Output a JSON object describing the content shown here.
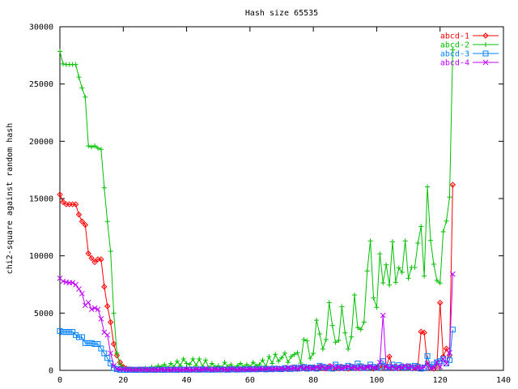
{
  "chart_data": {
    "type": "line",
    "title": "Hash size 65535",
    "xlabel": "",
    "ylabel": "chi2-square against random hash",
    "xlim": [
      0,
      140
    ],
    "ylim": [
      0,
      30000
    ],
    "xticks": [
      0,
      20,
      40,
      60,
      80,
      100,
      120,
      140
    ],
    "yticks": [
      0,
      5000,
      10000,
      15000,
      20000,
      25000,
      30000
    ],
    "grid": false,
    "legend_position": "top-right",
    "series": [
      {
        "name": "abcd-1",
        "color": "#ff0000",
        "marker": "diamond",
        "values": [
          15350,
          14700,
          14500,
          14500,
          14500,
          14500,
          13600,
          13000,
          12700,
          10200,
          9800,
          9450,
          9700,
          9700,
          7300,
          5600,
          4200,
          2300,
          1300,
          700,
          300,
          150,
          100,
          80,
          60,
          50,
          80,
          60,
          50,
          70,
          60,
          80,
          50,
          70,
          60,
          90,
          50,
          60,
          80,
          50,
          70,
          60,
          90,
          50,
          80,
          60,
          70,
          50,
          90,
          60,
          80,
          60,
          50,
          100,
          70,
          60,
          90,
          80,
          60,
          100,
          80,
          120,
          70,
          100,
          150,
          90,
          120,
          80,
          150,
          100,
          120,
          200,
          100,
          150,
          250,
          120,
          180,
          300,
          150,
          200,
          250,
          150,
          300,
          200,
          150,
          350,
          200,
          250,
          180,
          300,
          200,
          150,
          300,
          250,
          200,
          350,
          250,
          200,
          300,
          150,
          250,
          400,
          300,
          250,
          1200,
          250,
          300,
          200,
          350,
          250,
          300,
          200,
          250,
          400,
          3370,
          3300,
          500,
          200,
          150,
          400,
          5900,
          1200,
          1900,
          1300,
          16200
        ]
      },
      {
        "name": "abcd-2",
        "color": "#00c000",
        "marker": "plus",
        "values": [
          27850,
          26750,
          26700,
          26700,
          26700,
          26700,
          25600,
          24650,
          23850,
          19600,
          19500,
          19600,
          19400,
          19300,
          15940,
          13000,
          10400,
          5000,
          1500,
          500,
          200,
          150,
          100,
          100,
          100,
          150,
          100,
          200,
          100,
          300,
          200,
          400,
          300,
          500,
          200,
          600,
          300,
          800,
          400,
          1000,
          600,
          500,
          1000,
          400,
          1000,
          300,
          900,
          200,
          600,
          300,
          400,
          200,
          700,
          300,
          500,
          200,
          400,
          600,
          300,
          500,
          300,
          700,
          400,
          500,
          900,
          300,
          1200,
          600,
          1400,
          800,
          1100,
          1500,
          700,
          1200,
          1390,
          1550,
          640,
          2690,
          2570,
          1060,
          1490,
          4380,
          3180,
          1860,
          2690,
          5920,
          3920,
          2450,
          2620,
          5560,
          3270,
          1860,
          2920,
          6580,
          3750,
          3560,
          4220,
          8680,
          11300,
          6320,
          5500,
          10170,
          7640,
          9220,
          7450,
          11230,
          7690,
          8940,
          8560,
          11300,
          8040,
          8990,
          8990,
          11110,
          12570,
          8230,
          16020,
          11350,
          9270,
          7850,
          7620,
          12100,
          13040,
          15120,
          28000
        ]
      },
      {
        "name": "abcd-3",
        "color": "#0080ff",
        "marker": "square",
        "values": [
          3440,
          3350,
          3350,
          3350,
          3350,
          3090,
          2900,
          2900,
          2380,
          2380,
          2380,
          2300,
          2300,
          1910,
          1490,
          1080,
          610,
          200,
          100,
          50,
          50,
          40,
          60,
          50,
          40,
          50,
          60,
          40,
          50,
          60,
          40,
          60,
          50,
          40,
          70,
          50,
          60,
          40,
          80,
          50,
          60,
          50,
          80,
          60,
          50,
          90,
          60,
          70,
          50,
          80,
          60,
          90,
          70,
          50,
          100,
          80,
          60,
          90,
          70,
          100,
          80,
          120,
          90,
          100,
          150,
          80,
          120,
          100,
          150,
          120,
          100,
          200,
          150,
          120,
          250,
          150,
          200,
          300,
          150,
          250,
          200,
          150,
          400,
          300,
          250,
          200,
          150,
          500,
          300,
          200,
          250,
          400,
          300,
          200,
          600,
          350,
          200,
          250,
          500,
          300,
          200,
          350,
          800,
          250,
          300,
          500,
          200,
          450,
          300,
          250,
          350,
          200,
          400,
          300,
          150,
          250,
          1250,
          300,
          500,
          700,
          800,
          1000,
          600,
          900,
          3560
        ]
      },
      {
        "name": "abcd-4",
        "color": "#c000ff",
        "marker": "cross",
        "values": [
          8040,
          7780,
          7700,
          7650,
          7650,
          7480,
          7100,
          6700,
          5680,
          5930,
          5330,
          5440,
          5330,
          4500,
          3320,
          3090,
          1500,
          400,
          150,
          100,
          100,
          80,
          60,
          50,
          70,
          50,
          60,
          80,
          50,
          60,
          70,
          50,
          90,
          60,
          50,
          80,
          60,
          100,
          50,
          70,
          80,
          60,
          50,
          120,
          70,
          60,
          150,
          80,
          60,
          100,
          70,
          120,
          80,
          60,
          150,
          90,
          70,
          120,
          80,
          100,
          130,
          80,
          100,
          150,
          90,
          120,
          200,
          100,
          150,
          120,
          180,
          100,
          250,
          150,
          200,
          120,
          300,
          150,
          250,
          200,
          150,
          300,
          200,
          350,
          150,
          250,
          400,
          200,
          300,
          150,
          250,
          350,
          200,
          300,
          150,
          250,
          200,
          300,
          350,
          250,
          200,
          700,
          4800,
          300,
          200,
          350,
          150,
          300,
          250,
          400,
          200,
          350,
          150,
          250,
          200,
          300,
          600,
          200,
          250,
          700,
          300,
          1000,
          600,
          1550,
          8400
        ]
      }
    ]
  }
}
